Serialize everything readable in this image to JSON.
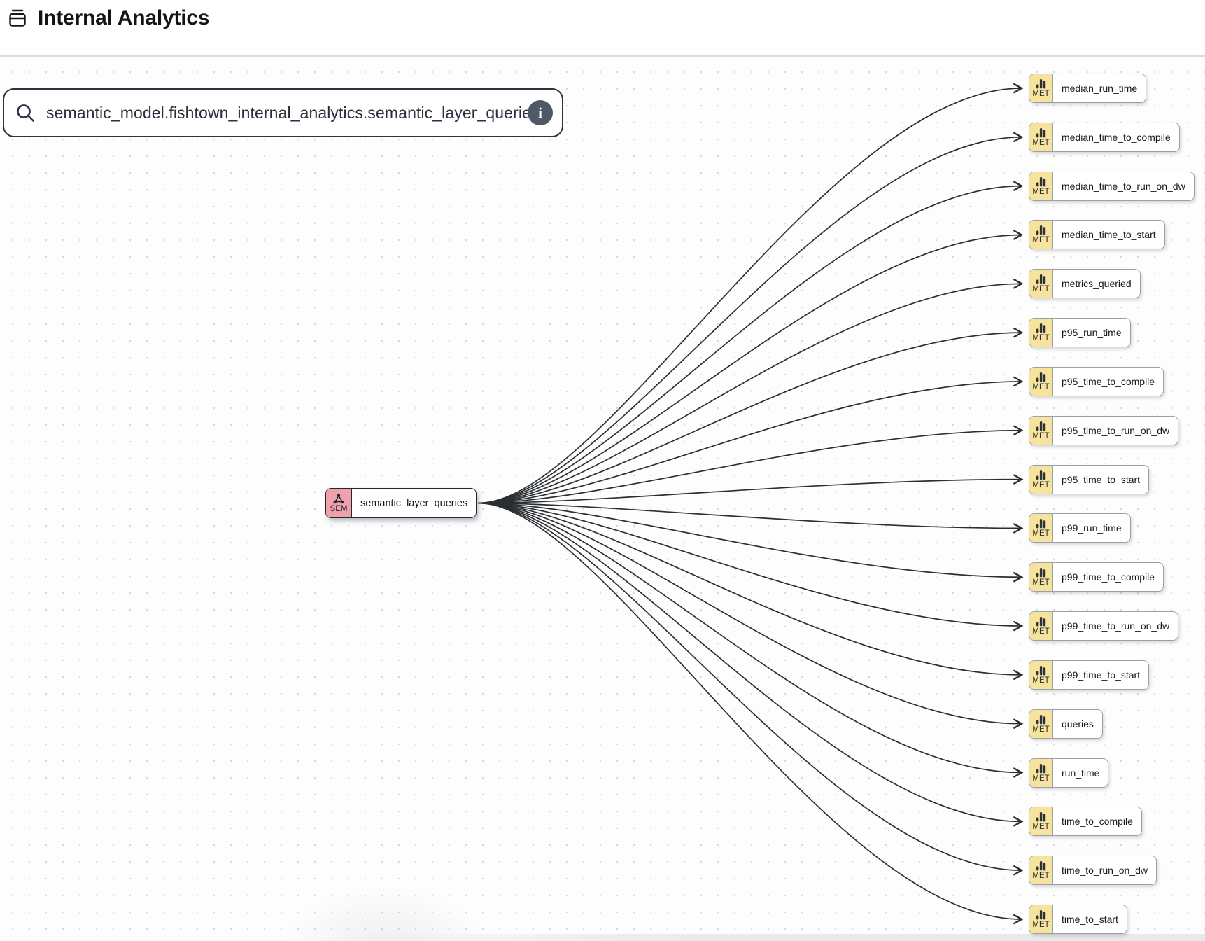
{
  "header": {
    "title": "Internal Analytics",
    "icon": "project-icon"
  },
  "search": {
    "value": "semantic_model.fishtown_internal_analytics.semantic_layer_queries",
    "search_icon": "search-icon",
    "info_icon": "info-icon",
    "info_glyph": "i"
  },
  "lineage": {
    "source_node": {
      "badge": "SEM",
      "label": "semantic_layer_queries",
      "icon": "semantic-model-icon"
    },
    "metric_badge": "MET",
    "metric_icon": "metric-bars-icon",
    "metrics": [
      "median_run_time",
      "median_time_to_compile",
      "median_time_to_run_on_dw",
      "median_time_to_start",
      "metrics_queried",
      "p95_run_time",
      "p95_time_to_compile",
      "p95_time_to_run_on_dw",
      "p95_time_to_start",
      "p99_run_time",
      "p99_time_to_compile",
      "p99_time_to_run_on_dw",
      "p99_time_to_start",
      "queries",
      "run_time",
      "time_to_compile",
      "time_to_run_on_dw",
      "time_to_start"
    ]
  },
  "colors": {
    "sem_badge": "#F0A2AB",
    "met_badge": "#F6E39E",
    "edge": "#2B2F33",
    "dark_border": "#1F2937",
    "gray_border": "#9AA0A8",
    "info_circle": "#4E5866"
  }
}
